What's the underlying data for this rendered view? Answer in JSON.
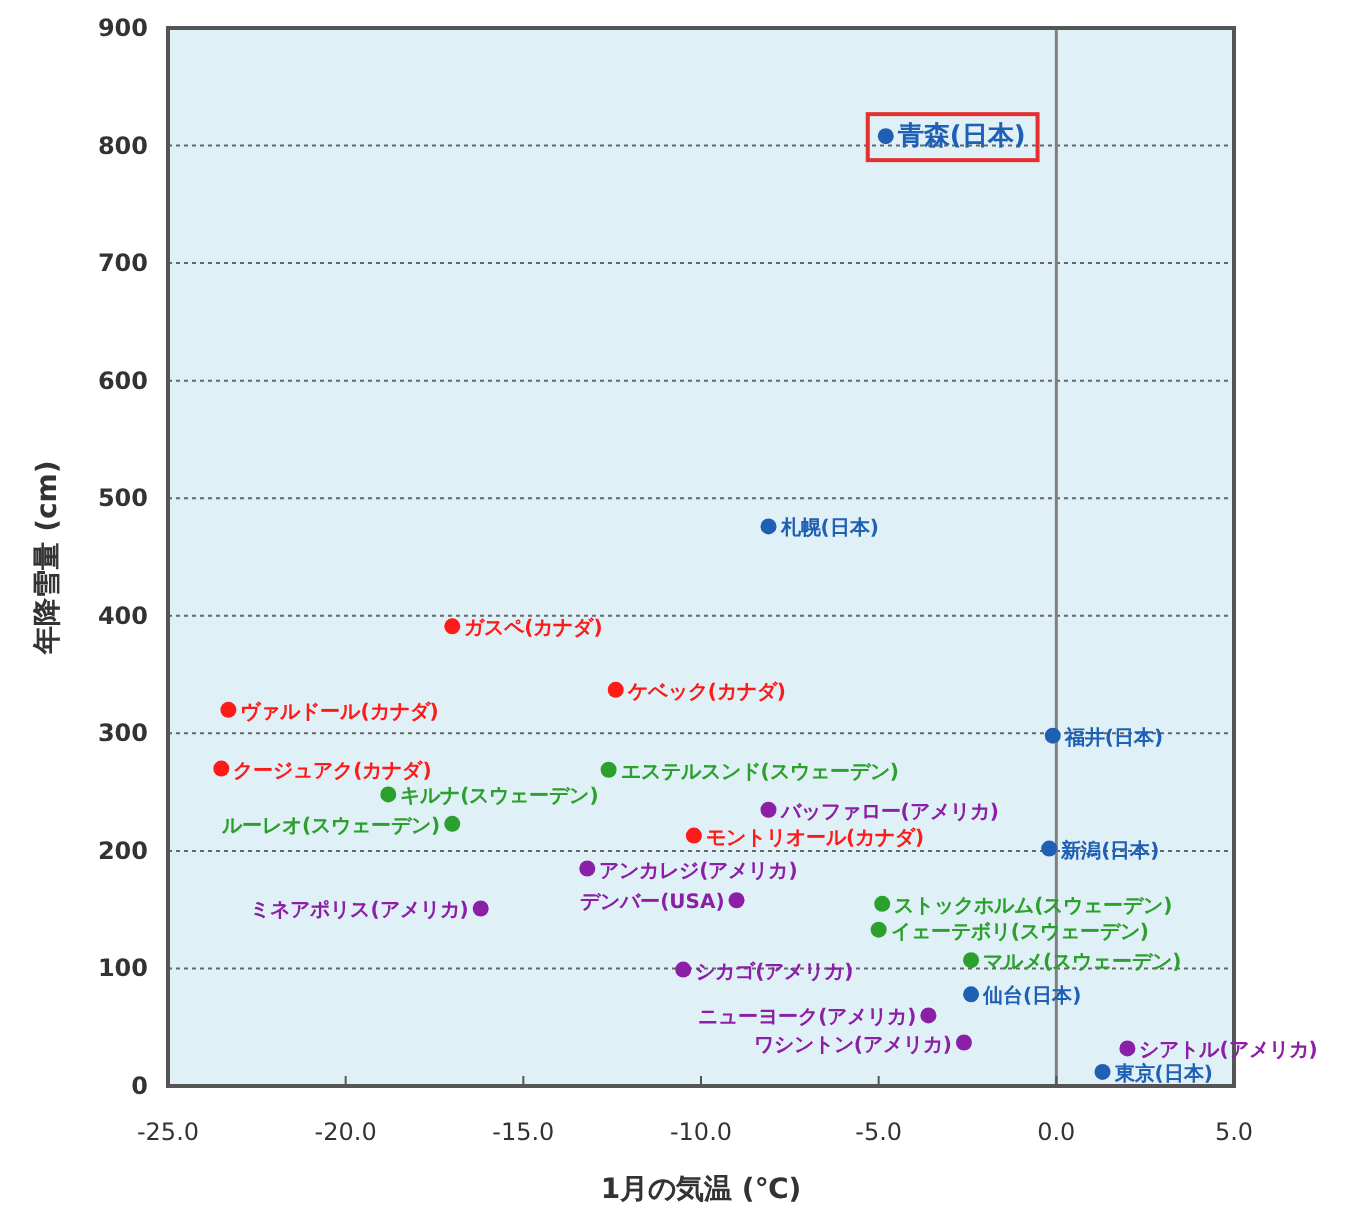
{
  "chart_data": {
    "type": "scatter",
    "xlabel": "1月の気温 (℃)",
    "ylabel": "年降雪量 (cm)",
    "xlim": [
      -25,
      5
    ],
    "ylim": [
      0,
      900
    ],
    "xticks": [
      {
        "value": -25,
        "label": "-25.0"
      },
      {
        "value": -20,
        "label": "-20.0"
      },
      {
        "value": -15,
        "label": "-15.0"
      },
      {
        "value": -10,
        "label": "-10.0"
      },
      {
        "value": -5,
        "label": "-5.0"
      },
      {
        "value": 0,
        "label": "0.0"
      },
      {
        "value": 5,
        "label": "5.0"
      }
    ],
    "yticks": [
      0,
      100,
      200,
      300,
      400,
      500,
      600,
      700,
      800,
      900
    ],
    "grid": "y",
    "marker": "circle",
    "ref_lines": [
      {
        "axis": "x",
        "value": 0,
        "color": "#808080"
      }
    ],
    "series": [
      {
        "color": "#1f5fb4",
        "x": [
          -4.8,
          -8.1,
          -0.1,
          -0.2,
          -2.4,
          1.3
        ],
        "values": [
          808,
          476,
          298,
          202,
          78,
          12
        ]
      },
      {
        "color": "#ff1a1a",
        "x": [
          -17.0,
          -12.4,
          -23.3,
          -23.5,
          -10.2
        ],
        "values": [
          391,
          337,
          320,
          270,
          213
        ]
      },
      {
        "color": "#2ca02c",
        "x": [
          -12.6,
          -18.8,
          -17.0,
          -4.9,
          -5.0,
          -2.4
        ],
        "values": [
          269,
          248,
          223,
          155,
          133,
          107
        ]
      },
      {
        "color": "#8b1fa6",
        "x": [
          -8.1,
          -13.2,
          -9.0,
          -16.2,
          -10.5,
          -3.6,
          -2.6,
          2.0
        ],
        "values": [
          235,
          185,
          158,
          151,
          99,
          60,
          37,
          32
        ]
      }
    ],
    "annotations": [
      {
        "text": "青森(日本)",
        "x": -4.8,
        "y": 808
      },
      {
        "text": "札幌(日本)",
        "x": -8.1,
        "y": 476
      },
      {
        "text": "福井(日本)",
        "x": -0.1,
        "y": 298
      },
      {
        "text": "新潟(日本)",
        "x": -0.2,
        "y": 202
      },
      {
        "text": "仙台(日本)",
        "x": -2.4,
        "y": 78
      },
      {
        "text": "東京(日本)",
        "x": 1.3,
        "y": 12
      },
      {
        "text": "ガスペ(カナダ)",
        "x": -17.0,
        "y": 391
      },
      {
        "text": "ケベック(カナダ)",
        "x": -12.4,
        "y": 337
      },
      {
        "text": "ヴァルドール(カナダ)",
        "x": -23.3,
        "y": 320
      },
      {
        "text": "クージュアク(カナダ)",
        "x": -23.5,
        "y": 270
      },
      {
        "text": "モントリオール(カナダ)",
        "x": -10.2,
        "y": 213
      },
      {
        "text": "エステルスンド(スウェーデン)",
        "x": -12.6,
        "y": 269
      },
      {
        "text": "キルナ(スウェーデン)",
        "x": -18.8,
        "y": 248
      },
      {
        "text": "ルーレオ(スウェーデン)",
        "x": -17.0,
        "y": 223
      },
      {
        "text": "ストックホルム(スウェーデン)",
        "x": -4.9,
        "y": 155
      },
      {
        "text": "イェーテボリ(スウェーデン)",
        "x": -5.0,
        "y": 133
      },
      {
        "text": "マルメ(スウェーデン)",
        "x": -2.4,
        "y": 107
      },
      {
        "text": "バッファロー(アメリカ)",
        "x": -8.1,
        "y": 235
      },
      {
        "text": "アンカレジ(アメリカ)",
        "x": -13.2,
        "y": 185
      },
      {
        "text": "デンバー(USA)",
        "x": -9.0,
        "y": 158
      },
      {
        "text": "ミネアポリス(アメリカ)",
        "x": -16.2,
        "y": 151
      },
      {
        "text": "シカゴ(アメリカ)",
        "x": -10.5,
        "y": 99
      },
      {
        "text": "ニューヨーク(アメリカ)",
        "x": -3.6,
        "y": 60
      },
      {
        "text": "ワシントン(アメリカ)",
        "x": -2.6,
        "y": 37
      },
      {
        "text": "シアトル(アメリカ)",
        "x": 2.0,
        "y": 32
      }
    ]
  }
}
